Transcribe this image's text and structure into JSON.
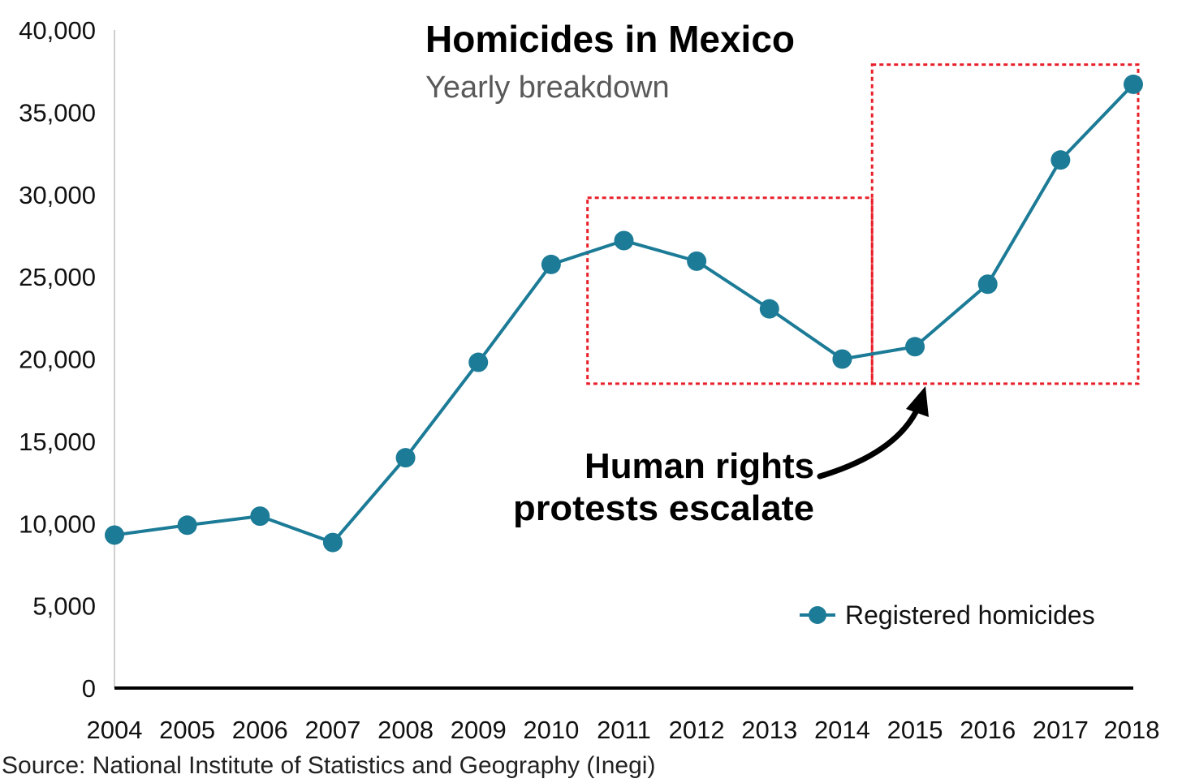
{
  "chart_data": {
    "type": "line",
    "title": "Homicides in Mexico",
    "subtitle": "Yearly breakdown",
    "x": [
      "2004",
      "2005",
      "2006",
      "2007",
      "2008",
      "2009",
      "2010",
      "2011",
      "2012",
      "2013",
      "2014",
      "2015",
      "2016",
      "2017",
      "2018"
    ],
    "series": [
      {
        "name": "Registered homicides",
        "values": [
          9300,
          9900,
          10450,
          8850,
          14000,
          19800,
          25750,
          27200,
          25950,
          23050,
          20000,
          20750,
          24550,
          32100,
          36700
        ]
      }
    ],
    "y_ticks": [
      "0",
      "5,000",
      "10,000",
      "15,000",
      "20,000",
      "25,000",
      "30,000",
      "35,000",
      "40,000"
    ],
    "ylim": [
      0,
      40000
    ],
    "grid": false,
    "legend_position": "bottom-right",
    "colors": {
      "series": "#1c7b96",
      "highlight_box": "#e8202a",
      "axis": "#000000",
      "annotation": "#000000"
    },
    "highlight_ranges": [
      {
        "x_start": "2011",
        "x_end": "2014",
        "y_low": 18500,
        "y_high": 29800
      },
      {
        "x_start": "2015",
        "x_end": "2018",
        "y_low": 18500,
        "y_high": 37900
      }
    ],
    "annotation": {
      "lines": [
        "Human rights",
        "protests escalate"
      ],
      "points_to": "2015"
    },
    "source": "Source: National Institute of Statistics and Geography (Inegi)"
  }
}
